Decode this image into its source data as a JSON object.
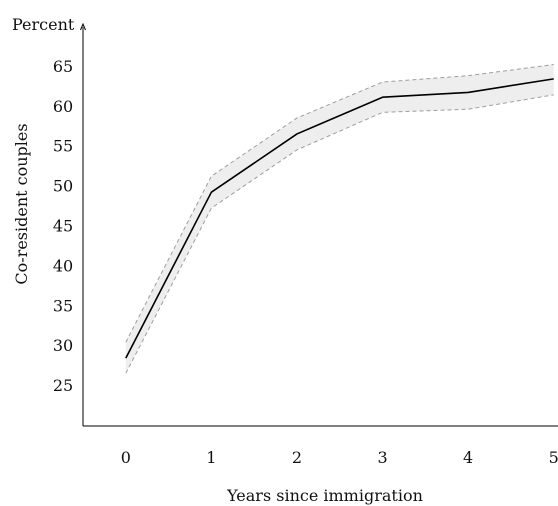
{
  "chart_data": {
    "type": "line",
    "title": "",
    "unit_label": "Percent",
    "xlabel": "Years since immigration",
    "ylabel": "Co-resident couples",
    "x": [
      0,
      1,
      2,
      3,
      4,
      5
    ],
    "xlim": [
      -0.5,
      5.05
    ],
    "ylim": [
      20,
      70
    ],
    "yticks": [
      25,
      30,
      35,
      40,
      45,
      50,
      55,
      60,
      65
    ],
    "grid": false,
    "legend": "none",
    "series": [
      {
        "values": [
          28.5,
          49.3,
          56.6,
          61.2,
          61.8,
          63.5
        ],
        "upper": [
          30.5,
          51.3,
          58.6,
          63.1,
          63.9,
          65.3
        ],
        "lower": [
          26.6,
          47.3,
          54.6,
          59.3,
          59.7,
          61.5
        ],
        "color": "#000000",
        "band_color": "#eeeeee",
        "band_edge_color": "#9e9e9e"
      }
    ]
  }
}
